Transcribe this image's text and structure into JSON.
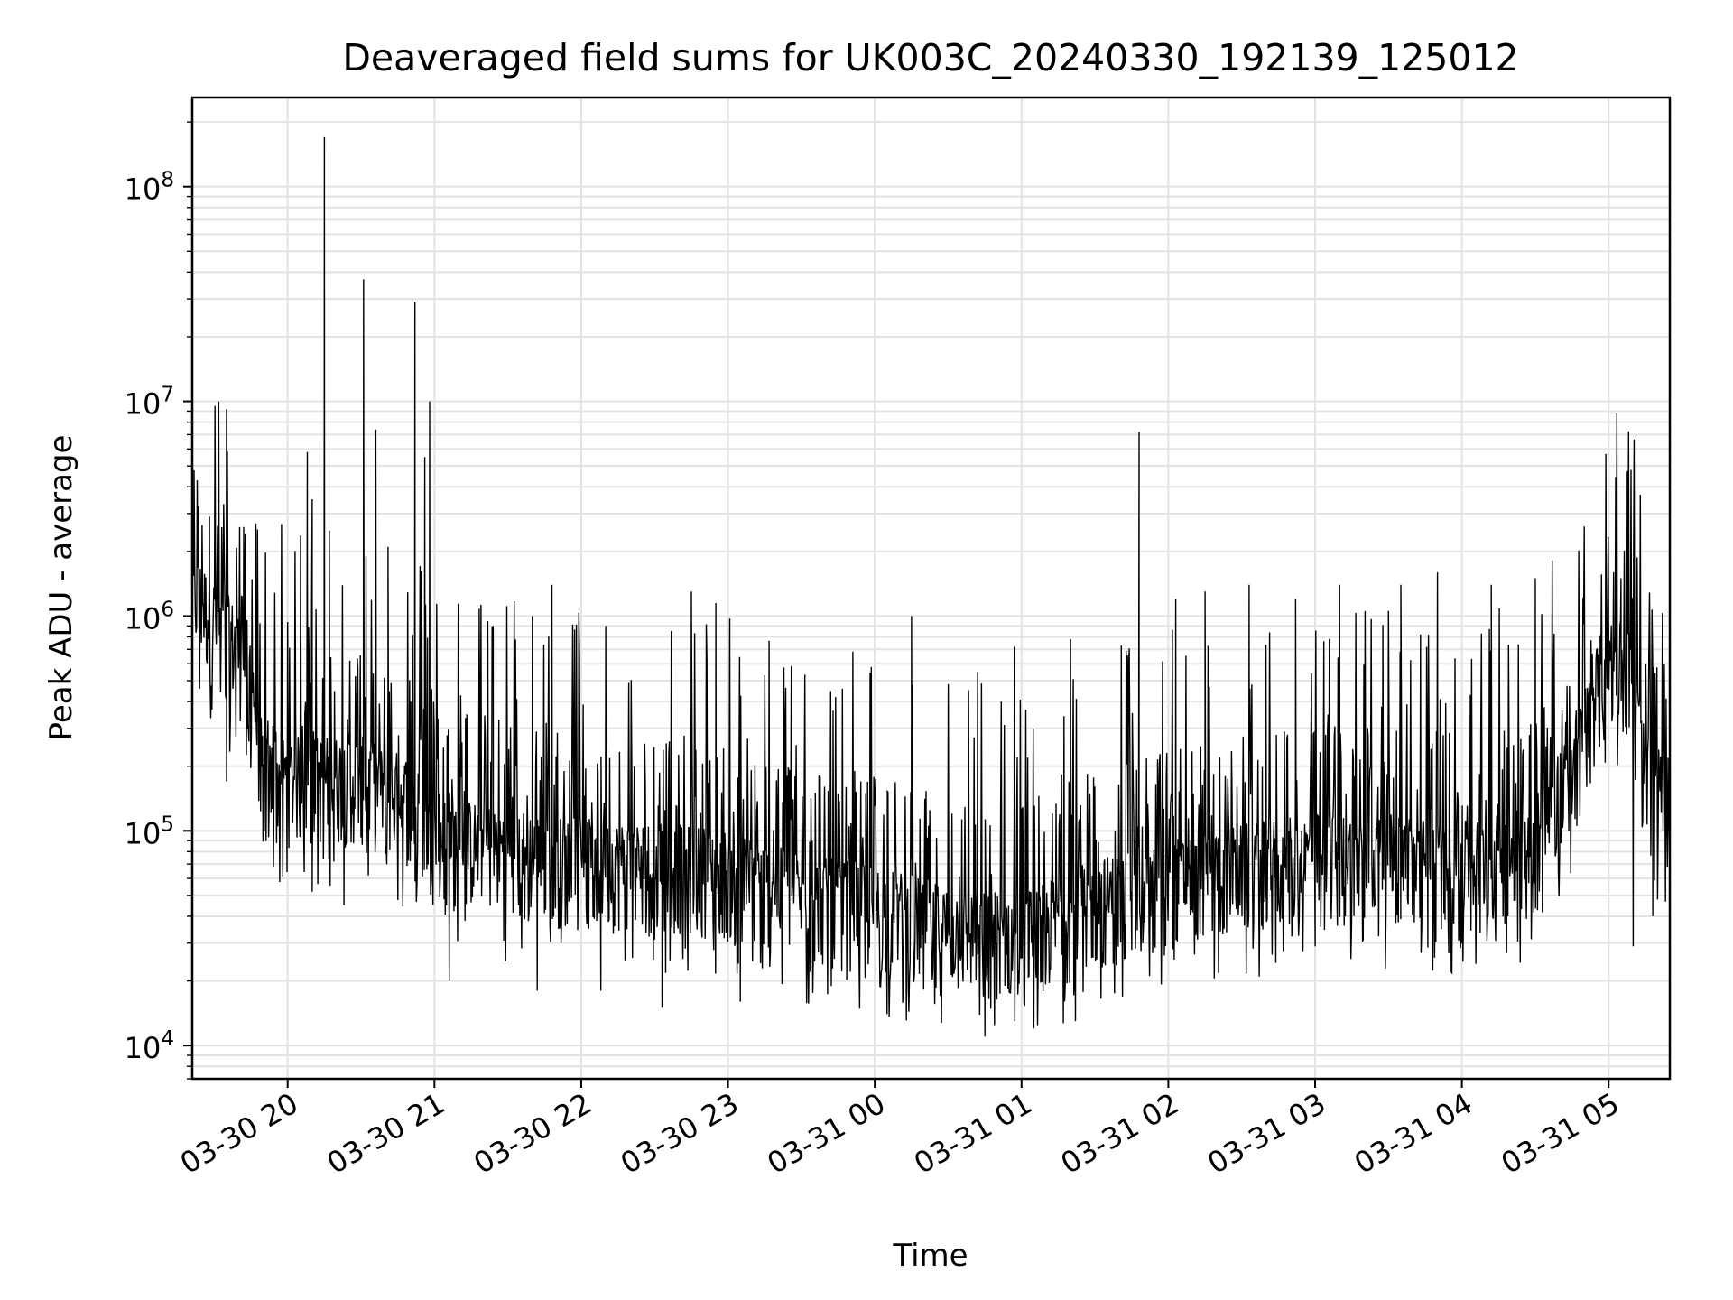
{
  "chart_data": {
    "type": "line",
    "title": "Deaveraged field sums for UK003C_20240330_192139_125012",
    "xlabel": "Time",
    "ylabel": "Peak ADU - average",
    "yscale": "log",
    "ylim": [
      7000,
      260000000
    ],
    "xlim": [
      "03-30 19:21",
      "03-31 05:25"
    ],
    "grid": true,
    "line_color": "#000000",
    "x_ticks": [
      "03-30 20",
      "03-30 21",
      "03-30 22",
      "03-30 23",
      "03-31 00",
      "03-31 01",
      "03-31 02",
      "03-31 03",
      "03-31 04",
      "03-31 05"
    ],
    "y_ticks": [
      {
        "value": 10000,
        "base": "10",
        "exp": "4"
      },
      {
        "value": 100000,
        "base": "10",
        "exp": "5"
      },
      {
        "value": 1000000,
        "base": "10",
        "exp": "6"
      },
      {
        "value": 10000000,
        "base": "10",
        "exp": "7"
      },
      {
        "value": 100000000,
        "base": "10",
        "exp": "8"
      }
    ],
    "series": [
      {
        "baseline": [
          [
            "03-30 19:21",
            1100000
          ],
          [
            "03-30 19:45",
            500000
          ],
          [
            "03-30 19:50",
            150000
          ],
          [
            "03-30 20:30",
            150000
          ],
          [
            "03-30 20:50",
            120000
          ],
          [
            "03-30 21:00",
            80000
          ],
          [
            "03-30 21:30",
            70000
          ],
          [
            "03-30 22:00",
            60000
          ],
          [
            "03-30 22:30",
            60000
          ],
          [
            "03-30 23:00",
            55000
          ],
          [
            "03-30 23:30",
            42000
          ],
          [
            "03-31 00:00",
            38000
          ],
          [
            "03-31 00:30",
            30000
          ],
          [
            "03-31 01:00",
            28000
          ],
          [
            "03-31 01:30",
            40000
          ],
          [
            "03-31 02:00",
            50000
          ],
          [
            "03-31 02:30",
            58000
          ],
          [
            "03-31 03:00",
            65000
          ],
          [
            "03-31 03:30",
            65000
          ],
          [
            "03-31 04:00",
            60000
          ],
          [
            "03-31 04:30",
            70000
          ],
          [
            "03-31 04:50",
            250000
          ],
          [
            "03-31 05:00",
            600000
          ],
          [
            "03-31 05:10",
            450000
          ],
          [
            "03-31 05:15",
            150000
          ],
          [
            "03-31 05:25",
            120000
          ]
        ],
        "peaks": [
          [
            "03-30 19:28",
            2900000
          ],
          [
            "03-30 19:35",
            9200000
          ],
          [
            "03-30 19:42",
            2600000
          ],
          [
            "03-30 19:47",
            2700000
          ],
          [
            "03-30 20:08",
            5800000
          ],
          [
            "03-30 20:10",
            3500000
          ],
          [
            "03-30 20:15",
            170000000
          ],
          [
            "03-30 20:17",
            2500000
          ],
          [
            "03-30 20:31",
            37000000
          ],
          [
            "03-30 20:32",
            1900000
          ],
          [
            "03-30 20:36",
            7400000
          ],
          [
            "03-30 20:41",
            2100000
          ],
          [
            "03-30 20:52",
            29000000
          ],
          [
            "03-30 20:58",
            10000000
          ],
          [
            "03-30 20:56",
            5500000
          ],
          [
            "03-30 21:24",
            900000
          ],
          [
            "03-30 21:40",
            1000000
          ],
          [
            "03-30 21:48",
            1400000
          ],
          [
            "03-30 22:10",
            900000
          ],
          [
            "03-30 22:45",
            1300000
          ],
          [
            "03-30 22:55",
            1150000
          ],
          [
            "03-31 00:15",
            1000000
          ],
          [
            "03-31 00:42",
            550000
          ],
          [
            "03-31 00:57",
            720000
          ],
          [
            "03-31 01:20",
            780000
          ],
          [
            "03-31 01:48",
            7200000
          ],
          [
            "03-31 02:03",
            1200000
          ],
          [
            "03-31 02:15",
            1300000
          ],
          [
            "03-31 02:33",
            1400000
          ],
          [
            "03-31 02:52",
            1200000
          ],
          [
            "03-31 03:10",
            1400000
          ],
          [
            "03-31 03:35",
            1400000
          ],
          [
            "03-31 03:50",
            1600000
          ],
          [
            "03-31 04:12",
            1400000
          ],
          [
            "03-31 04:30",
            1500000
          ],
          [
            "03-31 05:02",
            1600000
          ],
          [
            "03-31 05:05",
            1500000
          ],
          [
            "03-31 05:13",
            1050000
          ]
        ],
        "troughs": [
          [
            "03-30 19:35",
            170000
          ],
          [
            "03-30 20:10",
            52000
          ],
          [
            "03-30 20:23",
            45000
          ],
          [
            "03-30 21:06",
            20000
          ],
          [
            "03-30 21:42",
            18000
          ],
          [
            "03-30 22:08",
            18000
          ],
          [
            "03-30 22:33",
            15000
          ],
          [
            "03-30 23:05",
            16000
          ],
          [
            "03-31 00:05",
            14000
          ],
          [
            "03-31 00:45",
            11000
          ],
          [
            "03-31 01:05",
            12000
          ],
          [
            "03-31 01:22",
            13000
          ],
          [
            "03-31 03:00",
            29000
          ],
          [
            "03-31 05:10",
            29000
          ],
          [
            "03-31 05:18",
            40000
          ]
        ]
      }
    ]
  }
}
